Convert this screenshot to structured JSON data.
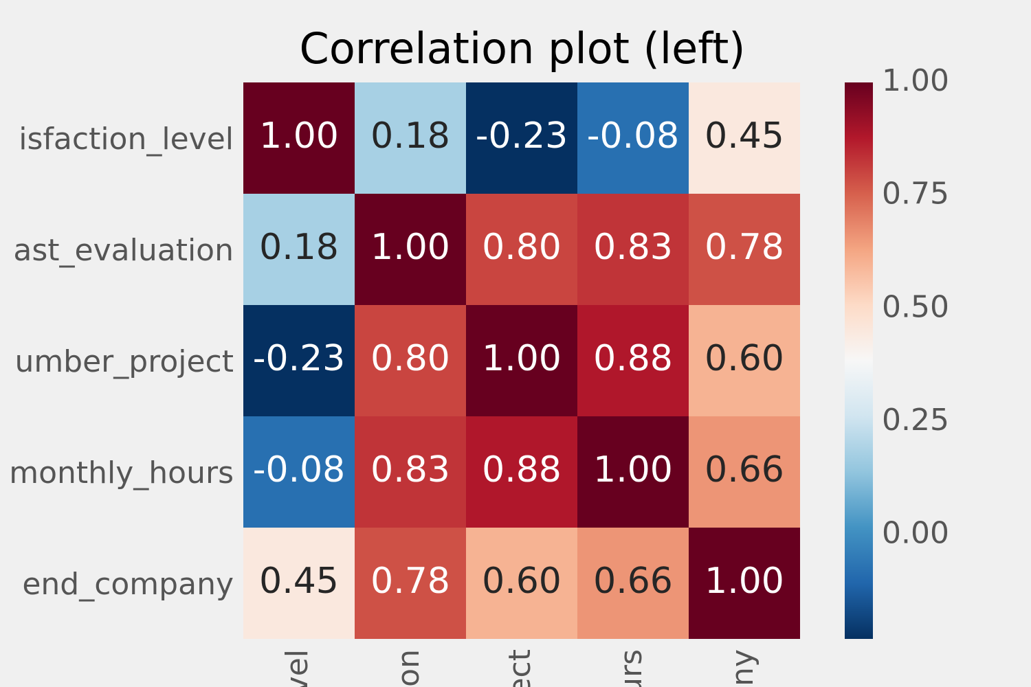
{
  "chart_data": {
    "type": "heatmap",
    "title": "Correlation plot (left)",
    "rows": [
      "isfaction_level",
      "ast_evaluation",
      "umber_project",
      "monthly_hours",
      "end_company"
    ],
    "columns": [
      "vel",
      "on",
      "ect",
      "urs",
      "ny"
    ],
    "values": [
      [
        1,
        0.18,
        -0.23,
        -0.08,
        0.45
      ],
      [
        0.18,
        1,
        0.8,
        0.83,
        0.78
      ],
      [
        -0.23,
        0.8,
        1,
        0.88,
        0.6
      ],
      [
        -0.08,
        0.83,
        0.88,
        1,
        0.66
      ],
      [
        0.45,
        0.78,
        0.6,
        0.66,
        1
      ]
    ],
    "value_labels": [
      [
        "1.00",
        "0.18",
        "-0.23",
        "-0.08",
        "0.45"
      ],
      [
        "0.18",
        "1.00",
        "0.80",
        "0.83",
        "0.78"
      ],
      [
        "-0.23",
        "0.80",
        "1.00",
        "0.88",
        "0.60"
      ],
      [
        "-0.08",
        "0.83",
        "0.88",
        "1.00",
        "0.66"
      ],
      [
        "0.45",
        "0.78",
        "0.60",
        "0.66",
        "1.00"
      ]
    ],
    "colormap": "RdBu_r",
    "clim": [
      -0.23,
      1.0
    ],
    "cticks": [
      {
        "value": 0,
        "label": "0.00"
      },
      {
        "value": 0.25,
        "label": "0.25"
      },
      {
        "value": 0.5,
        "label": "0.50"
      },
      {
        "value": 0.75,
        "label": "0.75"
      },
      {
        "value": 1,
        "label": "1.00"
      }
    ]
  }
}
